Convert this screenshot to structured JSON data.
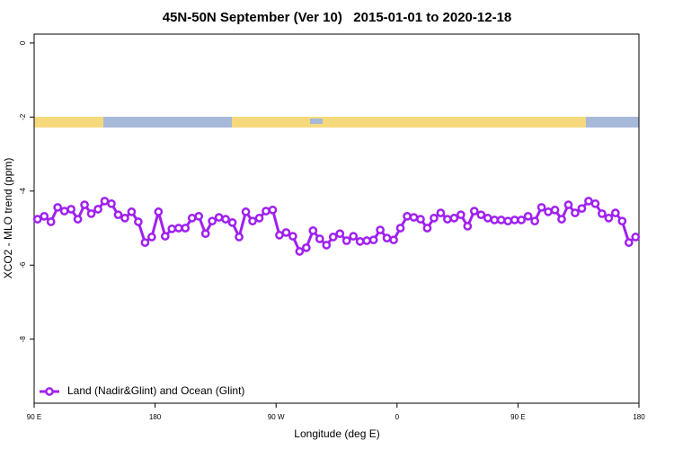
{
  "chart_data": {
    "type": "line",
    "title": "45N-50N September (Ver 10)   2015-01-01 to 2020-12-18",
    "x_label": "Longitude (deg E)",
    "y_label": "XCO2 - MLO trend (ppm)",
    "xlim": [
      90,
      540
    ],
    "xticks": [
      {
        "value": 90,
        "label": "90 E"
      },
      180,
      {
        "value": 270,
        "label": "90 W"
      },
      {
        "value": 360,
        "label": "0"
      },
      {
        "value": 450,
        "label": "90 E"
      },
      {
        "value": 540,
        "label": "180"
      }
    ],
    "ylim": [
      -9.73,
      0.24
    ],
    "yticks": [
      0,
      -2,
      -4,
      -6,
      -8
    ],
    "legend": "bottom-left",
    "x": [
      92.5,
      97.5,
      102.5,
      107.5,
      112.5,
      117.5,
      122.5,
      127.5,
      132.5,
      137.5,
      142.5,
      147.5,
      152.5,
      157.5,
      162.5,
      167.5,
      172.5,
      177.5,
      182.5,
      187.5,
      192.5,
      197.5,
      202.5,
      207.5,
      212.5,
      217.5,
      222.5,
      227.5,
      232.5,
      237.5,
      242.5,
      247.5,
      252.5,
      257.5,
      262.5,
      267.5,
      272.5,
      277.5,
      282.5,
      287.5,
      292.5,
      297.5,
      302.5,
      307.5,
      312.5,
      317.5,
      322.5,
      327.5,
      332.5,
      337.5,
      342.5,
      347.5,
      352.5,
      357.5,
      362.5,
      367.5,
      372.5,
      377.5,
      382.5,
      387.5,
      392.5,
      397.5,
      402.5,
      407.5,
      412.5,
      417.5,
      422.5,
      427.5,
      432.5,
      437.5,
      442.5,
      447.5,
      452.5,
      457.5,
      462.5,
      467.5,
      472.5,
      477.5,
      482.5,
      487.5,
      492.5,
      497.5,
      502.5,
      507.5,
      512.5,
      517.5,
      522.5,
      527.5,
      532.5,
      537.5
    ],
    "series": [
      {
        "name": "Land (Nadir&Glint) and Ocean (Glint)",
        "color": "#a020f0",
        "values": [
          -4.76,
          -4.68,
          -4.83,
          -4.44,
          -4.54,
          -4.49,
          -4.76,
          -4.37,
          -4.61,
          -4.49,
          -4.27,
          -4.34,
          -4.64,
          -4.73,
          -4.56,
          -4.83,
          -5.39,
          -5.24,
          -4.56,
          -5.22,
          -5.02,
          -5.0,
          -5.0,
          -4.73,
          -4.68,
          -5.15,
          -4.81,
          -4.71,
          -4.76,
          -4.85,
          -5.24,
          -4.56,
          -4.81,
          -4.73,
          -4.54,
          -4.51,
          -5.19,
          -5.12,
          -5.22,
          -5.63,
          -5.53,
          -5.07,
          -5.29,
          -5.46,
          -5.24,
          -5.15,
          -5.34,
          -5.22,
          -5.36,
          -5.34,
          -5.32,
          -5.05,
          -5.27,
          -5.32,
          -5.0,
          -4.68,
          -4.71,
          -4.76,
          -5.0,
          -4.73,
          -4.59,
          -4.76,
          -4.73,
          -4.64,
          -4.95,
          -4.54,
          -4.64,
          -4.73,
          -4.78,
          -4.78,
          -4.81,
          -4.78,
          -4.78,
          -4.68,
          -4.81,
          -4.44,
          -4.56,
          -4.51,
          -4.76,
          -4.37,
          -4.59,
          -4.47,
          -4.27,
          -4.34,
          -4.61,
          -4.73,
          -4.59,
          -4.81,
          -5.39,
          -5.24
        ]
      }
    ]
  }
}
